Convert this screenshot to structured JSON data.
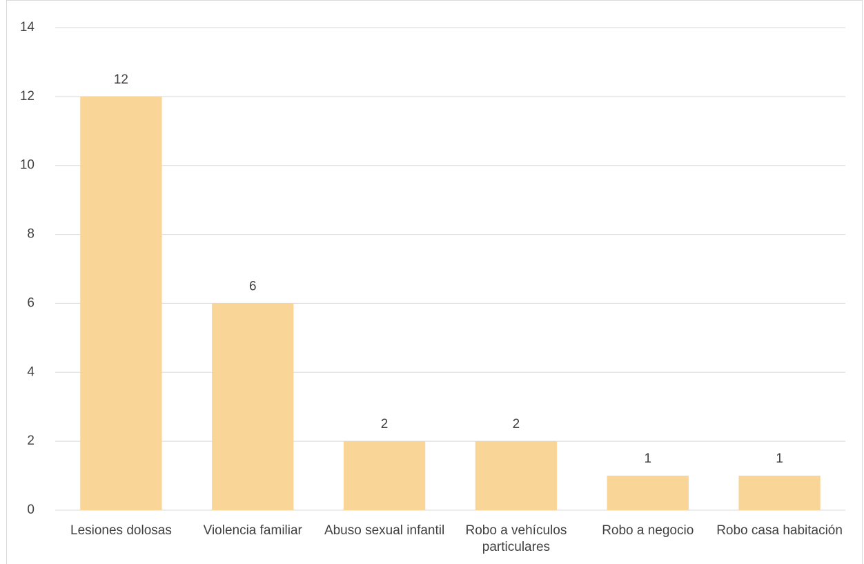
{
  "chart_data": {
    "type": "bar",
    "categories": [
      "Lesiones dolosas",
      "Violencia familiar",
      "Abuso sexual infantil",
      "Robo a vehículos particulares",
      "Robo a negocio",
      "Robo casa habitación"
    ],
    "values": [
      12,
      6,
      2,
      2,
      1,
      1
    ],
    "color": "#f9d598",
    "ylim": [
      0,
      14
    ],
    "yticks": [
      0,
      2,
      4,
      6,
      8,
      10,
      12,
      14
    ],
    "grid": true,
    "data_labels": true
  }
}
